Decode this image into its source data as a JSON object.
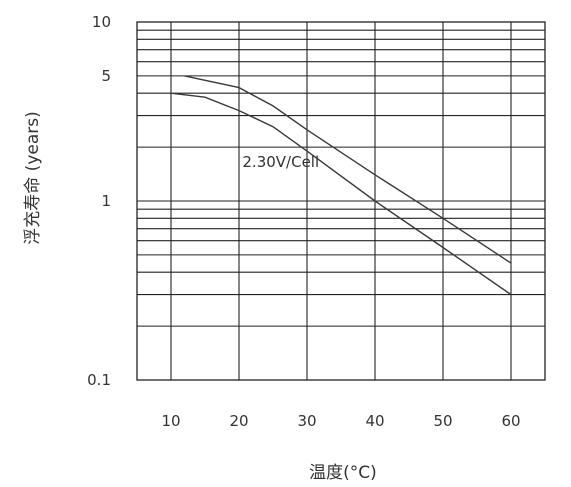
{
  "chart_data": {
    "type": "line",
    "title": "",
    "xlabel": "温度(°C)",
    "ylabel": "浮充寿命 (years)",
    "xlim": [
      5,
      65
    ],
    "ylim": [
      0.1,
      10
    ],
    "yscale": "log",
    "grid": true,
    "x_ticks": [
      10,
      20,
      30,
      40,
      50,
      60
    ],
    "y_ticks": [
      {
        "value": 0.1,
        "label": "0.1"
      },
      {
        "value": 1,
        "label": "1"
      },
      {
        "value": 5,
        "label": "5"
      },
      {
        "value": 10,
        "label": "10"
      }
    ],
    "series": [
      {
        "x": [
          12,
          20,
          25,
          30,
          40,
          50,
          60
        ],
        "y": [
          5.0,
          4.3,
          3.4,
          2.5,
          1.4,
          0.8,
          0.45
        ]
      },
      {
        "x": [
          10,
          15,
          20,
          25,
          30,
          40,
          50,
          60
        ],
        "y": [
          4.0,
          3.8,
          3.2,
          2.6,
          1.9,
          1.0,
          0.55,
          0.3
        ]
      }
    ],
    "annotations": [
      {
        "text": "2.30V/Cell",
        "x": 20.5,
        "y": 1.55
      }
    ]
  }
}
